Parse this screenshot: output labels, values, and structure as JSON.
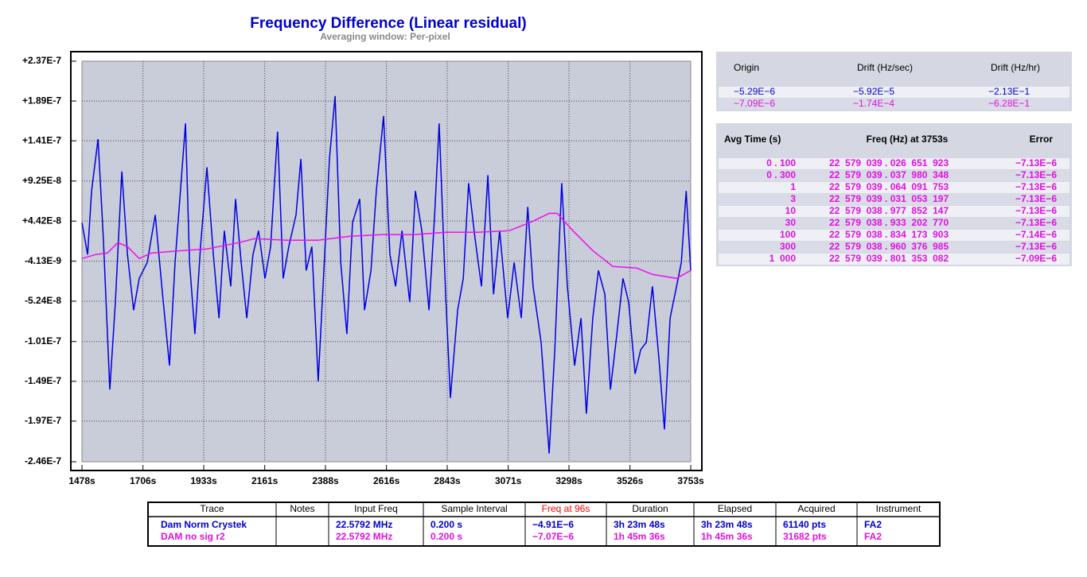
{
  "chart_data": {
    "type": "line",
    "title": "Frequency Difference (Linear residual)",
    "subtitle": "Averaging window: Per-pixel",
    "xlim": [
      1478,
      3753
    ],
    "xticks": [
      {
        "value": 1478,
        "label": "1478s"
      },
      {
        "value": 1706,
        "label": "1706s"
      },
      {
        "value": 1933,
        "label": "1933s"
      },
      {
        "value": 2161,
        "label": "2161s"
      },
      {
        "value": 2388,
        "label": "2388s"
      },
      {
        "value": 2616,
        "label": "2616s"
      },
      {
        "value": 2843,
        "label": "2843s"
      },
      {
        "value": 3071,
        "label": "3071s"
      },
      {
        "value": 3298,
        "label": "3298s"
      },
      {
        "value": 3526,
        "label": "3526s"
      },
      {
        "value": 3753,
        "label": "3753s"
      }
    ],
    "ylim": [
      -2.46e-07,
      2.37e-07
    ],
    "yticks": [
      {
        "value": 2.37e-07,
        "label": "+2.37E-7"
      },
      {
        "value": 1.89e-07,
        "label": "+1.89E-7"
      },
      {
        "value": 1.41e-07,
        "label": "+1.41E-7"
      },
      {
        "value": 9.25e-08,
        "label": "+9.25E-8"
      },
      {
        "value": 4.42e-08,
        "label": "+4.42E-8"
      },
      {
        "value": -4.13e-09,
        "label": "-4.13E-9"
      },
      {
        "value": -5.24e-08,
        "label": "-5.24E-8"
      },
      {
        "value": -1.01e-07,
        "label": "-1.01E-7"
      },
      {
        "value": -1.49e-07,
        "label": "-1.49E-7"
      },
      {
        "value": -1.97e-07,
        "label": "-1.97E-7"
      },
      {
        "value": -2.46e-07,
        "label": "-2.46E-7"
      }
    ],
    "grid": true,
    "series": [
      {
        "color": "#0000e0",
        "x": [
          1478,
          1499,
          1514,
          1538,
          1558,
          1582,
          1603,
          1627,
          1648,
          1671,
          1692,
          1722,
          1752,
          1782,
          1805,
          1826,
          1865,
          1880,
          1900,
          1921,
          1945,
          1969,
          1990,
          2010,
          2034,
          2052,
          2073,
          2094,
          2117,
          2138,
          2162,
          2183,
          2209,
          2230,
          2251,
          2278,
          2296,
          2316,
          2337,
          2361,
          2385,
          2403,
          2424,
          2445,
          2468,
          2489,
          2516,
          2534,
          2558,
          2578,
          2605,
          2629,
          2650,
          2674,
          2703,
          2724,
          2748,
          2775,
          2796,
          2813,
          2837,
          2855,
          2882,
          2903,
          2923,
          2947,
          2971,
          2995,
          3016,
          3039,
          3069,
          3093,
          3120,
          3144,
          3164,
          3194,
          3224,
          3245,
          3271,
          3292,
          3319,
          3343,
          3363,
          3387,
          3408,
          3432,
          3453,
          3477,
          3500,
          3521,
          3545,
          3566,
          3587,
          3610,
          3634,
          3655,
          3676,
          3700,
          3718,
          3736,
          3753
        ],
        "values": [
          4.22e-08,
          3.8e-09,
          8.05e-08,
          1.43e-07,
          2.3e-08,
          -1.59e-07,
          -5.36e-08,
          1.04e-07,
          3.8e-09,
          -6.32e-08,
          -2.49e-08,
          -5.7e-09,
          5.17e-08,
          -5.36e-08,
          -1.3e-07,
          -5.7e-09,
          1.62e-07,
          -5.7e-09,
          -9.2e-08,
          1.34e-08,
          1.09e-07,
          3.8e-09,
          -7.28e-08,
          3.26e-08,
          -3.45e-08,
          7.09e-08,
          -5.7e-09,
          -7.28e-08,
          3.8e-09,
          3.26e-08,
          -2.49e-08,
          1.34e-08,
          1.52e-07,
          -2.49e-08,
          1.34e-08,
          5.17e-08,
          1.19e-07,
          -1.53e-08,
          1.34e-08,
          -1.49e-07,
          3.8e-09,
          1.19e-07,
          1.95e-07,
          -5.7e-09,
          -9.2e-08,
          4.22e-08,
          7.09e-08,
          -6.32e-08,
          -1.53e-08,
          8.05e-08,
          1.71e-07,
          3.8e-09,
          -3.45e-08,
          3.26e-08,
          -5.36e-08,
          8.05e-08,
          3.26e-08,
          -6.32e-08,
          5.17e-08,
          1.62e-07,
          -4.41e-08,
          -1.69e-07,
          -6.32e-08,
          -2.49e-08,
          9e-08,
          2.3e-08,
          -3.45e-08,
          9.96e-08,
          -4.41e-08,
          3.26e-08,
          -7.28e-08,
          -5.7e-09,
          -7.28e-08,
          6.13e-08,
          -3.45e-08,
          -1.02e-07,
          -2.36e-07,
          -1.11e-07,
          9e-08,
          -3.45e-08,
          -1.3e-07,
          -7.28e-08,
          -1.88e-07,
          -7.28e-08,
          -1.53e-08,
          -4.41e-08,
          -1.59e-07,
          -9.2e-08,
          -2.49e-08,
          -5.36e-08,
          -1.4e-07,
          -1.11e-07,
          -1.02e-07,
          -3.45e-08,
          -1.21e-07,
          -2.07e-07,
          -7.28e-08,
          -3.45e-08,
          -5.7e-09,
          8.05e-08,
          -1.53e-08
        ]
      },
      {
        "color": "#f010f0",
        "x": [
          1478,
          1529,
          1573,
          1612,
          1648,
          1692,
          1737,
          1856,
          1945,
          2064,
          2123,
          2242,
          2361,
          2480,
          2599,
          2718,
          2837,
          2956,
          3075,
          3164,
          3224,
          3254,
          3313,
          3387,
          3462,
          3551,
          3610,
          3700,
          3753
        ],
        "values": [
          -9.6e-10,
          3.8e-09,
          5.7e-09,
          1.82e-08,
          1.34e-08,
          -9.6e-10,
          5.7e-09,
          8.6e-09,
          1.05e-08,
          1.82e-08,
          2.3e-08,
          2.11e-08,
          2.11e-08,
          2.59e-08,
          2.78e-08,
          2.78e-08,
          3.07e-08,
          3.07e-08,
          3.26e-08,
          4.41e-08,
          5.36e-08,
          5.36e-08,
          3.26e-08,
          8.6e-09,
          -1.05e-08,
          -1.25e-08,
          -2.01e-08,
          -2.49e-08,
          -1.53e-08
        ]
      }
    ]
  },
  "drift_table": {
    "header": [
      "Origin",
      "Drift (Hz/sec)",
      "Drift (Hz/hr)"
    ],
    "rows": [
      [
        "−5.29E−6",
        "−5.92E−5",
        "−2.13E−1"
      ],
      [
        "−7.09E−6",
        "−1.74E−4",
        "−6.28E−1"
      ]
    ]
  },
  "avg_table": {
    "header": [
      "Avg Time (s)",
      "Freq (Hz) at 3753s",
      "Error"
    ],
    "rows": [
      [
        "0 . 100",
        "22  579  039 . 026  651  923",
        "−7.13E−6"
      ],
      [
        "0 . 300",
        "22  579  039 . 037  980  348",
        "−7.13E−6"
      ],
      [
        "1",
        "22  579  039 . 064  091  753",
        "−7.13E−6"
      ],
      [
        "3",
        "22  579  039 . 031  053  197",
        "−7.13E−6"
      ],
      [
        "10",
        "22  579  038 . 977  852  147",
        "−7.13E−6"
      ],
      [
        "30",
        "22  579  038 . 933  202  770",
        "−7.13E−6"
      ],
      [
        "100",
        "22  579  038 . 834  173  903",
        "−7.14E−6"
      ],
      [
        "300",
        "22  579  038 . 960  376  985",
        "−7.13E−6"
      ],
      [
        "1  000",
        "22  579  039 . 801  353  082",
        "−7.09E−6"
      ]
    ]
  },
  "trace_table": {
    "header": [
      "Trace",
      "Notes",
      "Input Freq",
      "Sample Interval",
      "Freq at 96s",
      "Duration",
      "Elapsed",
      "Acquired",
      "Instrument"
    ],
    "rows": [
      [
        "Dam Norm Crystek",
        "",
        "22.5792 MHz",
        "0.200 s",
        "−4.91E−6",
        "3h 23m 48s",
        "3h 23m 48s",
        "61140 pts",
        "FA2"
      ],
      [
        "DAM no sig r2",
        "",
        "22.5792 MHz",
        "0.200 s",
        "−7.07E−6",
        "1h 45m 36s",
        "1h 45m 36s",
        "31682 pts",
        "FA2"
      ]
    ]
  }
}
